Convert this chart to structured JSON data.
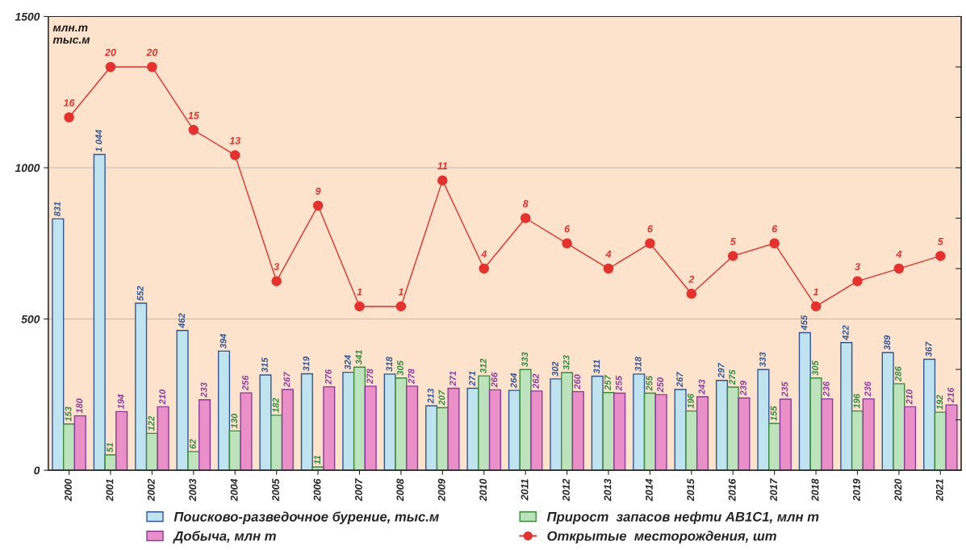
{
  "chart_data": {
    "type": "bar",
    "ylabel": "млн.т\nтыс.м",
    "categories": [
      "2000",
      "2001",
      "2002",
      "2003",
      "2004",
      "2005",
      "2006",
      "2007",
      "2008",
      "2009",
      "2010",
      "2011",
      "2012",
      "2013",
      "2014",
      "2015",
      "2016",
      "2017",
      "2018",
      "2019",
      "2020",
      "2021"
    ],
    "series": [
      {
        "name": "Поисково-разведочное бурение, тыс.м",
        "color": "#bfe4f0",
        "values": [
          831,
          1044,
          552,
          462,
          394,
          315,
          319,
          324,
          318,
          213,
          271,
          264,
          302,
          311,
          318,
          267,
          297,
          333,
          455,
          422,
          389,
          367
        ],
        "value_labels": [
          "831",
          "1 044",
          "552",
          "462",
          "394",
          "315",
          "319",
          "324",
          "318",
          "213",
          "271",
          "264",
          "302",
          "311",
          "318",
          "267",
          "297",
          "333",
          "455",
          "422",
          "389",
          "367"
        ]
      },
      {
        "name": "Прирост  запасов нефти АВ1С1, млн т",
        "color": "#bde3bd",
        "values": [
          153,
          51,
          122,
          62,
          130,
          182,
          11,
          341,
          305,
          207,
          312,
          333,
          323,
          257,
          255,
          196,
          275,
          155,
          305,
          196,
          286,
          192
        ]
      },
      {
        "name": "Добыча, млн т",
        "color": "#ea8fc8",
        "values": [
          180,
          194,
          210,
          233,
          256,
          267,
          276,
          278,
          278,
          271,
          266,
          262,
          260,
          255,
          250,
          243,
          239,
          235,
          236,
          236,
          210,
          216
        ]
      },
      {
        "name": "Открытые  месторождения, шт",
        "type": "line",
        "axis": "y2",
        "color": "#e8312c",
        "marker": "circle",
        "values": [
          16,
          20,
          20,
          15,
          13,
          3,
          9,
          1,
          1,
          11,
          4,
          8,
          6,
          4,
          6,
          2,
          5,
          6,
          1,
          3,
          4,
          5
        ]
      }
    ],
    "ylim": [
      0,
      1500
    ],
    "yticks": [
      0,
      500,
      1000,
      1500
    ],
    "y2lim": [
      -12,
      24
    ],
    "y2ticks": [
      {
        "value": -12,
        "label": null
      },
      {
        "value": -8,
        "label": null
      },
      {
        "value": -4,
        "label": null
      },
      {
        "value": 0,
        "label": null
      },
      {
        "value": 4,
        "label": null
      },
      {
        "value": 8,
        "label": null
      },
      {
        "value": 12,
        "label": null
      },
      {
        "value": 16,
        "label": null
      },
      {
        "value": 20,
        "label": null
      },
      {
        "value": 24,
        "label": null
      }
    ],
    "grid": "y",
    "legend": "bottom",
    "data_labels": true
  }
}
